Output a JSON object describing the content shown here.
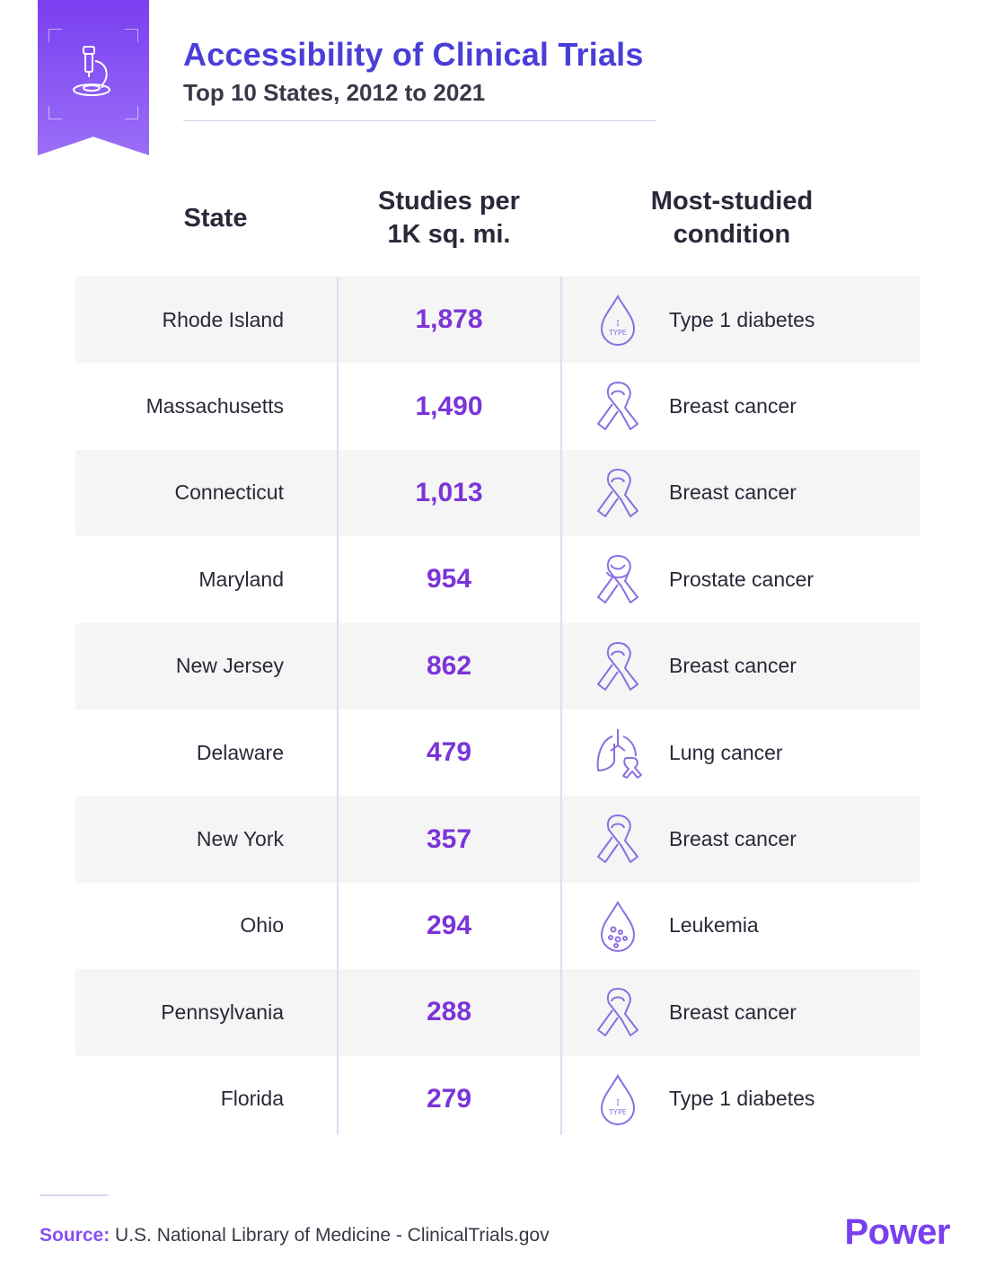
{
  "header": {
    "title": "Accessibility of Clinical Trials",
    "subtitle": "Top 10 States, 2012 to 2021",
    "badge_icon": "microscope-icon"
  },
  "columns": {
    "state": "State",
    "studies_line1": "Studies per",
    "studies_line2": "1K sq. mi.",
    "condition_line1": "Most-studied",
    "condition_line2": "condition"
  },
  "chart_data": {
    "type": "table",
    "title": "Accessibility of Clinical Trials",
    "subtitle": "Top 10 States, 2012 to 2021",
    "columns": [
      "State",
      "Studies per 1K sq. mi.",
      "Most-studied condition"
    ],
    "rows": [
      {
        "state": "Rhode Island",
        "value": "1,878",
        "condition": "Type 1 diabetes",
        "icon": "type1-drop-icon"
      },
      {
        "state": "Massachusetts",
        "value": "1,490",
        "condition": "Breast cancer",
        "icon": "ribbon-icon"
      },
      {
        "state": "Connecticut",
        "value": "1,013",
        "condition": "Breast cancer",
        "icon": "ribbon-icon"
      },
      {
        "state": "Maryland",
        "value": "954",
        "condition": "Prostate cancer",
        "icon": "prostate-ribbon-icon"
      },
      {
        "state": "New Jersey",
        "value": "862",
        "condition": "Breast cancer",
        "icon": "ribbon-icon"
      },
      {
        "state": "Delaware",
        "value": "479",
        "condition": "Lung cancer",
        "icon": "lungs-icon"
      },
      {
        "state": "New York",
        "value": "357",
        "condition": "Breast cancer",
        "icon": "ribbon-icon"
      },
      {
        "state": "Ohio",
        "value": "294",
        "condition": "Leukemia",
        "icon": "blood-cells-drop-icon"
      },
      {
        "state": "Pennsylvania",
        "value": "288",
        "condition": "Breast cancer",
        "icon": "ribbon-icon"
      },
      {
        "state": "Florida",
        "value": "279",
        "condition": "Type 1 diabetes",
        "icon": "type1-drop-icon"
      }
    ]
  },
  "icon_text": {
    "type1_top": "I",
    "type1_bottom": "TYPE"
  },
  "footer": {
    "source_label": "Source:",
    "source_text": " U.S. National Library of Medicine - ClinicalTrials.gov",
    "brand": "Power"
  },
  "colors": {
    "accent": "#4a3ed8",
    "value": "#7b34d8",
    "ribbon": "#7a3ff0",
    "row_shade": "#f5f5f5",
    "icon_stroke": "#8a6fe0"
  }
}
